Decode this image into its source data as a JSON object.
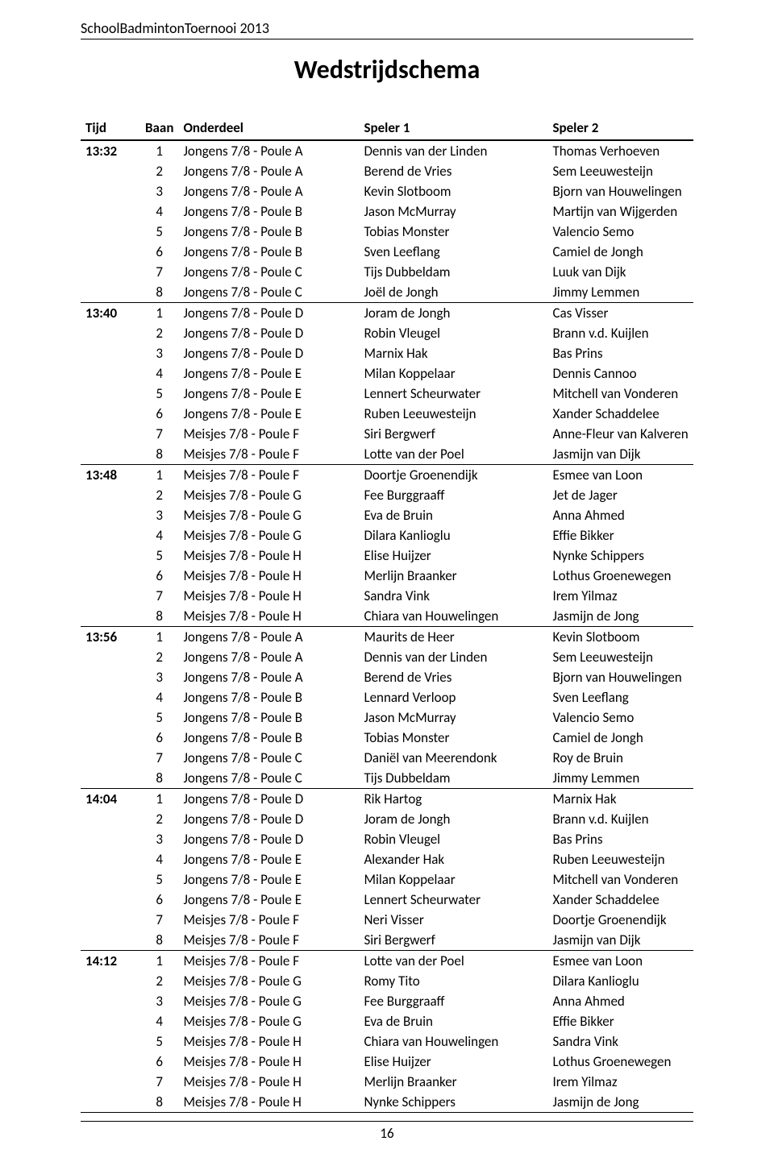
{
  "doc_header": "SchoolBadmintonToernooi 2013",
  "title": "Wedstrijdschema",
  "page_number": "16",
  "columns": {
    "tijd": "Tijd",
    "baan": "Baan",
    "onderdeel": "Onderdeel",
    "speler1": "Speler 1",
    "speler2": "Speler 2"
  },
  "blocks": [
    {
      "tijd": "13:32",
      "rows": [
        {
          "baan": "1",
          "onderdeel": "Jongens 7/8 - Poule A",
          "sp1": "Dennis van der Linden",
          "sp2": "Thomas Verhoeven"
        },
        {
          "baan": "2",
          "onderdeel": "Jongens 7/8 - Poule A",
          "sp1": "Berend de Vries",
          "sp2": "Sem Leeuwesteijn"
        },
        {
          "baan": "3",
          "onderdeel": "Jongens 7/8 - Poule A",
          "sp1": "Kevin Slotboom",
          "sp2": "Bjorn van Houwelingen"
        },
        {
          "baan": "4",
          "onderdeel": "Jongens 7/8 - Poule B",
          "sp1": "Jason McMurray",
          "sp2": "Martijn van Wijgerden"
        },
        {
          "baan": "5",
          "onderdeel": "Jongens 7/8 - Poule B",
          "sp1": "Tobias Monster",
          "sp2": "Valencio Semo"
        },
        {
          "baan": "6",
          "onderdeel": "Jongens 7/8 - Poule B",
          "sp1": "Sven Leeflang",
          "sp2": "Camiel de Jongh"
        },
        {
          "baan": "7",
          "onderdeel": "Jongens 7/8 - Poule C",
          "sp1": "Tijs Dubbeldam",
          "sp2": "Luuk van Dijk"
        },
        {
          "baan": "8",
          "onderdeel": "Jongens 7/8 - Poule C",
          "sp1": "Joël de Jongh",
          "sp2": "Jimmy Lemmen"
        }
      ]
    },
    {
      "tijd": "13:40",
      "rows": [
        {
          "baan": "1",
          "onderdeel": "Jongens 7/8 - Poule D",
          "sp1": "Joram de Jongh",
          "sp2": "Cas Visser"
        },
        {
          "baan": "2",
          "onderdeel": "Jongens 7/8 - Poule D",
          "sp1": "Robin Vleugel",
          "sp2": "Brann v.d. Kuijlen"
        },
        {
          "baan": "3",
          "onderdeel": "Jongens 7/8 - Poule D",
          "sp1": "Marnix Hak",
          "sp2": "Bas Prins"
        },
        {
          "baan": "4",
          "onderdeel": "Jongens 7/8 - Poule E",
          "sp1": "Milan Koppelaar",
          "sp2": "Dennis Cannoo"
        },
        {
          "baan": "5",
          "onderdeel": "Jongens 7/8 - Poule E",
          "sp1": "Lennert Scheurwater",
          "sp2": "Mitchell van Vonderen"
        },
        {
          "baan": "6",
          "onderdeel": "Jongens 7/8 - Poule E",
          "sp1": "Ruben Leeuwesteijn",
          "sp2": "Xander Schaddelee"
        },
        {
          "baan": "7",
          "onderdeel": "Meisjes 7/8 - Poule F",
          "sp1": "Siri Bergwerf",
          "sp2": "Anne-Fleur van Kalveren"
        },
        {
          "baan": "8",
          "onderdeel": "Meisjes 7/8 - Poule F",
          "sp1": "Lotte van der Poel",
          "sp2": "Jasmijn van Dijk"
        }
      ]
    },
    {
      "tijd": "13:48",
      "rows": [
        {
          "baan": "1",
          "onderdeel": "Meisjes 7/8 - Poule F",
          "sp1": "Doortje Groenendijk",
          "sp2": "Esmee van Loon"
        },
        {
          "baan": "2",
          "onderdeel": "Meisjes 7/8 - Poule G",
          "sp1": "Fee Burggraaff",
          "sp2": "Jet de Jager"
        },
        {
          "baan": "3",
          "onderdeel": "Meisjes 7/8 - Poule G",
          "sp1": "Eva de Bruin",
          "sp2": "Anna Ahmed"
        },
        {
          "baan": "4",
          "onderdeel": "Meisjes 7/8 - Poule G",
          "sp1": "Dilara Kanlioglu",
          "sp2": "Effie Bikker"
        },
        {
          "baan": "5",
          "onderdeel": "Meisjes 7/8 - Poule H",
          "sp1": "Elise Huijzer",
          "sp2": "Nynke Schippers"
        },
        {
          "baan": "6",
          "onderdeel": "Meisjes 7/8 - Poule H",
          "sp1": "Merlijn Braanker",
          "sp2": "Lothus Groenewegen"
        },
        {
          "baan": "7",
          "onderdeel": "Meisjes 7/8 - Poule H",
          "sp1": "Sandra Vink",
          "sp2": "Irem Yilmaz"
        },
        {
          "baan": "8",
          "onderdeel": "Meisjes 7/8 - Poule H",
          "sp1": "Chiara van Houwelingen",
          "sp2": "Jasmijn de Jong"
        }
      ]
    },
    {
      "tijd": "13:56",
      "rows": [
        {
          "baan": "1",
          "onderdeel": "Jongens 7/8 - Poule A",
          "sp1": "Maurits de Heer",
          "sp2": "Kevin Slotboom"
        },
        {
          "baan": "2",
          "onderdeel": "Jongens 7/8 - Poule A",
          "sp1": "Dennis van der Linden",
          "sp2": "Sem Leeuwesteijn"
        },
        {
          "baan": "3",
          "onderdeel": "Jongens 7/8 - Poule A",
          "sp1": "Berend de Vries",
          "sp2": "Bjorn van Houwelingen"
        },
        {
          "baan": "4",
          "onderdeel": "Jongens 7/8 - Poule B",
          "sp1": "Lennard Verloop",
          "sp2": "Sven Leeflang"
        },
        {
          "baan": "5",
          "onderdeel": "Jongens 7/8 - Poule B",
          "sp1": "Jason McMurray",
          "sp2": "Valencio Semo"
        },
        {
          "baan": "6",
          "onderdeel": "Jongens 7/8 - Poule B",
          "sp1": "Tobias Monster",
          "sp2": "Camiel de Jongh"
        },
        {
          "baan": "7",
          "onderdeel": "Jongens 7/8 - Poule C",
          "sp1": "Daniël van Meerendonk",
          "sp2": "Roy de Bruin"
        },
        {
          "baan": "8",
          "onderdeel": "Jongens 7/8 - Poule C",
          "sp1": "Tijs Dubbeldam",
          "sp2": "Jimmy Lemmen"
        }
      ]
    },
    {
      "tijd": "14:04",
      "rows": [
        {
          "baan": "1",
          "onderdeel": "Jongens 7/8 - Poule D",
          "sp1": "Rik Hartog",
          "sp2": "Marnix Hak"
        },
        {
          "baan": "2",
          "onderdeel": "Jongens 7/8 - Poule D",
          "sp1": "Joram de Jongh",
          "sp2": "Brann v.d. Kuijlen"
        },
        {
          "baan": "3",
          "onderdeel": "Jongens 7/8 - Poule D",
          "sp1": "Robin Vleugel",
          "sp2": "Bas Prins"
        },
        {
          "baan": "4",
          "onderdeel": "Jongens 7/8 - Poule E",
          "sp1": "Alexander Hak",
          "sp2": "Ruben Leeuwesteijn"
        },
        {
          "baan": "5",
          "onderdeel": "Jongens 7/8 - Poule E",
          "sp1": "Milan Koppelaar",
          "sp2": "Mitchell van Vonderen"
        },
        {
          "baan": "6",
          "onderdeel": "Jongens 7/8 - Poule E",
          "sp1": "Lennert Scheurwater",
          "sp2": "Xander Schaddelee"
        },
        {
          "baan": "7",
          "onderdeel": "Meisjes 7/8 - Poule F",
          "sp1": "Neri Visser",
          "sp2": "Doortje Groenendijk"
        },
        {
          "baan": "8",
          "onderdeel": "Meisjes 7/8 - Poule F",
          "sp1": "Siri Bergwerf",
          "sp2": "Jasmijn van Dijk"
        }
      ]
    },
    {
      "tijd": "14:12",
      "rows": [
        {
          "baan": "1",
          "onderdeel": "Meisjes 7/8 - Poule F",
          "sp1": "Lotte van der Poel",
          "sp2": "Esmee van Loon"
        },
        {
          "baan": "2",
          "onderdeel": "Meisjes 7/8 - Poule G",
          "sp1": "Romy Tito",
          "sp2": "Dilara Kanlioglu"
        },
        {
          "baan": "3",
          "onderdeel": "Meisjes 7/8 - Poule G",
          "sp1": "Fee Burggraaff",
          "sp2": "Anna Ahmed"
        },
        {
          "baan": "4",
          "onderdeel": "Meisjes 7/8 - Poule G",
          "sp1": "Eva de Bruin",
          "sp2": "Effie Bikker"
        },
        {
          "baan": "5",
          "onderdeel": "Meisjes 7/8 - Poule H",
          "sp1": "Chiara van Houwelingen",
          "sp2": "Sandra Vink"
        },
        {
          "baan": "6",
          "onderdeel": "Meisjes 7/8 - Poule H",
          "sp1": "Elise Huijzer",
          "sp2": "Lothus Groenewegen"
        },
        {
          "baan": "7",
          "onderdeel": "Meisjes 7/8 - Poule H",
          "sp1": "Merlijn Braanker",
          "sp2": "Irem Yilmaz"
        },
        {
          "baan": "8",
          "onderdeel": "Meisjes 7/8 - Poule H",
          "sp1": "Nynke Schippers",
          "sp2": "Jasmijn de Jong"
        }
      ]
    }
  ]
}
